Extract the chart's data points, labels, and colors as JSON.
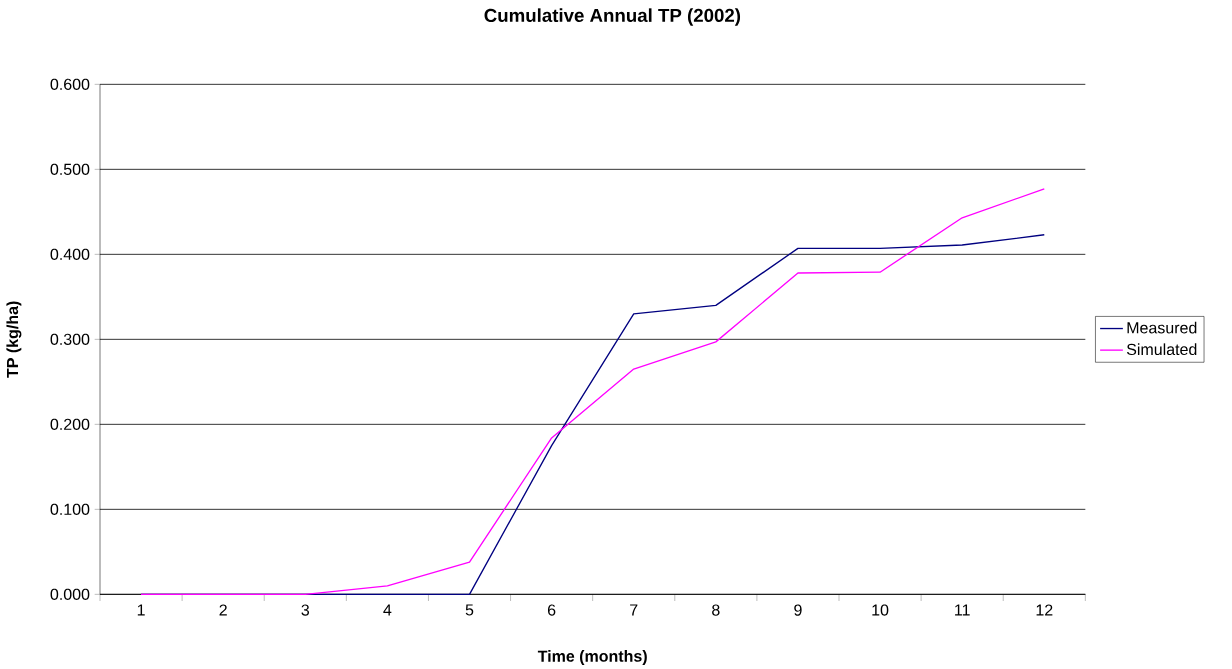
{
  "chart_data": {
    "type": "line",
    "title": "Cumulative Annual TP (2002)",
    "xlabel": "Time (months)",
    "ylabel": "TP (kg/ha)",
    "categories": [
      "1",
      "2",
      "3",
      "4",
      "5",
      "6",
      "7",
      "8",
      "9",
      "10",
      "11",
      "12"
    ],
    "series": [
      {
        "name": "Measured",
        "color": "#000080",
        "values": [
          0,
          0,
          0,
          0,
          0,
          0.175,
          0.33,
          0.34,
          0.407,
          0.407,
          0.411,
          0.423
        ]
      },
      {
        "name": "Simulated",
        "color": "#ff00ff",
        "values": [
          0,
          0,
          0,
          0.01,
          0.038,
          0.184,
          0.265,
          0.297,
          0.378,
          0.379,
          0.443,
          0.477
        ]
      }
    ],
    "ylim": [
      0,
      0.6
    ],
    "yticks": [
      {
        "value": 0,
        "label": "0.000"
      },
      {
        "value": 0.1,
        "label": "0.100"
      },
      {
        "value": 0.2,
        "label": "0.200"
      },
      {
        "value": 0.3,
        "label": "0.300"
      },
      {
        "value": 0.4,
        "label": "0.400"
      },
      {
        "value": 0.5,
        "label": "0.500"
      },
      {
        "value": 0.6,
        "label": "0.600"
      }
    ],
    "grid": "y",
    "legend": "right",
    "marker": "none",
    "line_style": "solid"
  }
}
